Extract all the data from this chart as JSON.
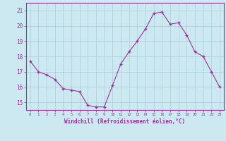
{
  "hours": [
    0,
    1,
    2,
    3,
    4,
    5,
    6,
    7,
    8,
    9,
    10,
    11,
    12,
    13,
    14,
    15,
    16,
    17,
    18,
    19,
    20,
    21,
    22,
    23
  ],
  "values": [
    17.7,
    17.0,
    16.8,
    16.5,
    15.9,
    15.8,
    15.7,
    14.8,
    14.7,
    14.7,
    16.1,
    17.5,
    18.3,
    19.0,
    19.8,
    20.8,
    20.9,
    20.1,
    20.2,
    19.4,
    18.3,
    18.0,
    17.0,
    16.0
  ],
  "line_color": "#993399",
  "marker": "+",
  "bg_color": "#cce8f0",
  "grid_color": "#aaccd8",
  "xlabel": "Windchill (Refroidissement éolien,°C)",
  "ylabel_ticks": [
    15,
    16,
    17,
    18,
    19,
    20,
    21
  ],
  "ylim": [
    14.5,
    21.5
  ],
  "xlim": [
    -0.5,
    23.5
  ],
  "tick_label_color": "#993399",
  "xlabel_color": "#993399",
  "axis_color": "#993399"
}
